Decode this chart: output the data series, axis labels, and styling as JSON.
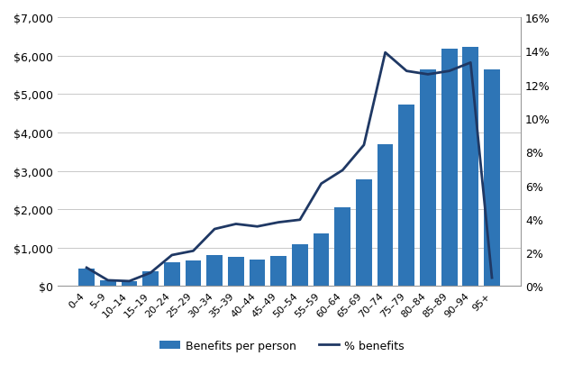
{
  "categories": [
    "0–4",
    "5–9",
    "10–14",
    "15–19",
    "20–24",
    "25–29",
    "30–34",
    "35–39",
    "40–44",
    "45–49",
    "50–54",
    "55–59",
    "60–64",
    "65–69",
    "70–74",
    "75–79",
    "80–84",
    "85–89",
    "90–94",
    "95+"
  ],
  "bar_values": [
    450,
    150,
    130,
    380,
    620,
    660,
    800,
    760,
    700,
    780,
    1080,
    1370,
    2050,
    2780,
    3700,
    4720,
    5650,
    6170,
    6230,
    5650
  ],
  "line_values": [
    1.1,
    0.35,
    0.3,
    0.8,
    1.85,
    2.1,
    3.4,
    3.7,
    3.55,
    3.8,
    3.95,
    6.1,
    6.9,
    8.4,
    13.9,
    12.8,
    12.6,
    12.8,
    13.3,
    0.5
  ],
  "bar_color": "#2E75B6",
  "line_color": "#1F3864",
  "ylim_left": [
    0,
    7000
  ],
  "ylim_right": [
    0,
    16
  ],
  "yticks_left": [
    0,
    1000,
    2000,
    3000,
    4000,
    5000,
    6000,
    7000
  ],
  "yticks_right": [
    0,
    2,
    4,
    6,
    8,
    10,
    12,
    14,
    16
  ],
  "legend_bar_label": "Benefits per person",
  "legend_line_label": "% benefits",
  "background_color": "#ffffff",
  "grid_color": "#c8c8c8",
  "figsize": [
    6.26,
    4.06
  ],
  "dpi": 100
}
